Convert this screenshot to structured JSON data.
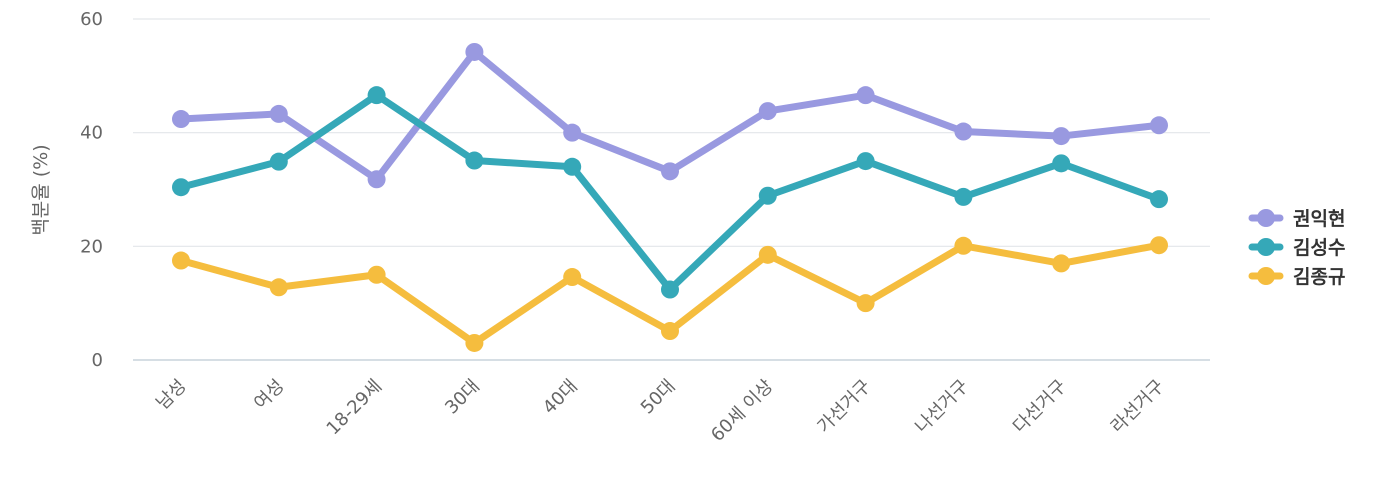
{
  "chart_data": {
    "type": "line",
    "title": "",
    "xlabel": "",
    "ylabel": "백분율 (%)",
    "ylim": [
      0,
      60
    ],
    "yticks": [
      0,
      20,
      40,
      60
    ],
    "grid": true,
    "legend_position": "right",
    "categories": [
      "남성",
      "여성",
      "18-29세",
      "30대",
      "40대",
      "50대",
      "60세 이상",
      "가선거구",
      "나선거구",
      "다선거구",
      "라선거구"
    ],
    "series": [
      {
        "name": "권익현",
        "color": "#9999e0",
        "values": [
          42.4,
          43.3,
          31.8,
          54.2,
          40.0,
          33.2,
          43.8,
          46.6,
          40.2,
          39.4,
          41.3
        ]
      },
      {
        "name": "김성수",
        "color": "#35a8b8",
        "values": [
          30.4,
          34.9,
          46.6,
          35.1,
          34.0,
          12.4,
          28.9,
          35.0,
          28.7,
          34.6,
          28.3
        ]
      },
      {
        "name": "김종규",
        "color": "#f5bd3e",
        "values": [
          17.5,
          12.8,
          15.0,
          3.0,
          14.6,
          5.1,
          18.5,
          10.0,
          20.1,
          17.0,
          20.2
        ]
      }
    ]
  }
}
